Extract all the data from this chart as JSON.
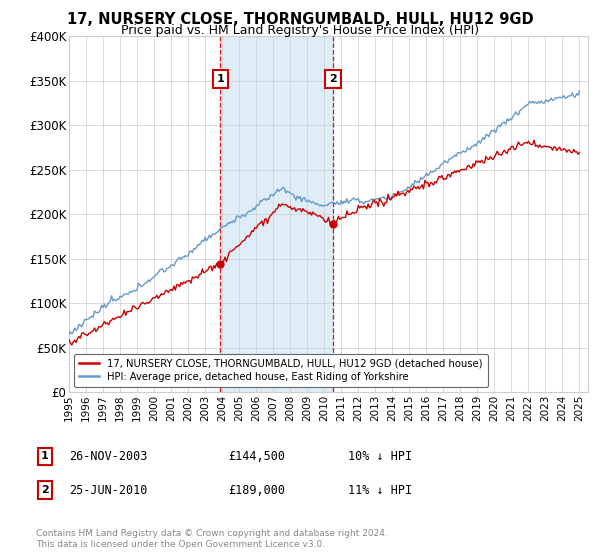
{
  "title": "17, NURSERY CLOSE, THORNGUMBALD, HULL, HU12 9GD",
  "subtitle": "Price paid vs. HM Land Registry's House Price Index (HPI)",
  "ylim": [
    0,
    400000
  ],
  "yticks": [
    0,
    50000,
    100000,
    150000,
    200000,
    250000,
    300000,
    350000,
    400000
  ],
  "ytick_labels": [
    "£0",
    "£50K",
    "£100K",
    "£150K",
    "£200K",
    "£250K",
    "£300K",
    "£350K",
    "£400K"
  ],
  "xlim_start": 1995.0,
  "xlim_end": 2025.5,
  "background_color": "#ffffff",
  "grid_color": "#cccccc",
  "shade_color": "#daeaf7",
  "sale1_date_x": 2003.9,
  "sale1_price": 144500,
  "sale2_date_x": 2010.5,
  "sale2_price": 189000,
  "legend_line1": "17, NURSERY CLOSE, THORNGUMBALD, HULL, HU12 9GD (detached house)",
  "legend_line2": "HPI: Average price, detached house, East Riding of Yorkshire",
  "footnote": "Contains HM Land Registry data © Crown copyright and database right 2024.\nThis data is licensed under the Open Government Licence v3.0.",
  "line_color_red": "#cc0000",
  "line_color_blue": "#6699cc",
  "marker_box_color": "#cc0000",
  "sale1_label": "26-NOV-2003",
  "sale2_label": "25-JUN-2010",
  "sale1_price_str": "£144,500",
  "sale2_price_str": "£189,000",
  "sale1_hpi": "10% ↓ HPI",
  "sale2_hpi": "11% ↓ HPI"
}
